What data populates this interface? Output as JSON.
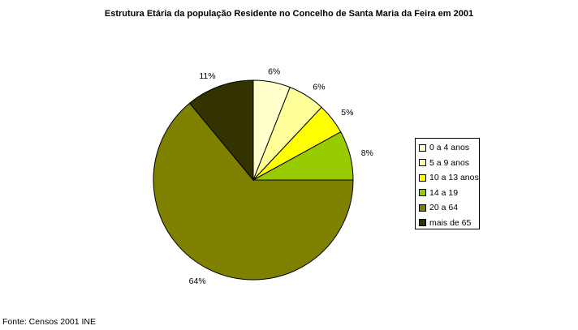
{
  "chart_data": {
    "type": "pie",
    "title": "Estrutura Etária da população Residente no Concelho de Santa Maria da Feira em 2001",
    "slices": [
      {
        "label": "0 a 4 anos",
        "value": 6,
        "value_label": "6%",
        "color": "#FFFFCC"
      },
      {
        "label": "5 a 9 anos",
        "value": 6,
        "value_label": "6%",
        "color": "#FFFF99"
      },
      {
        "label": "10 a 13 anos",
        "value": 5,
        "value_label": "5%",
        "color": "#FFFF00"
      },
      {
        "label": "14 a 19",
        "value": 8,
        "value_label": "8%",
        "color": "#99CC00"
      },
      {
        "label": "20 a 64",
        "value": 64,
        "value_label": "64%",
        "color": "#808000"
      },
      {
        "label": "mais de 65",
        "value": 11,
        "value_label": "11%",
        "color": "#333300"
      }
    ],
    "legend_position": "right",
    "source": "Fonte: Censos 2001 INE"
  }
}
